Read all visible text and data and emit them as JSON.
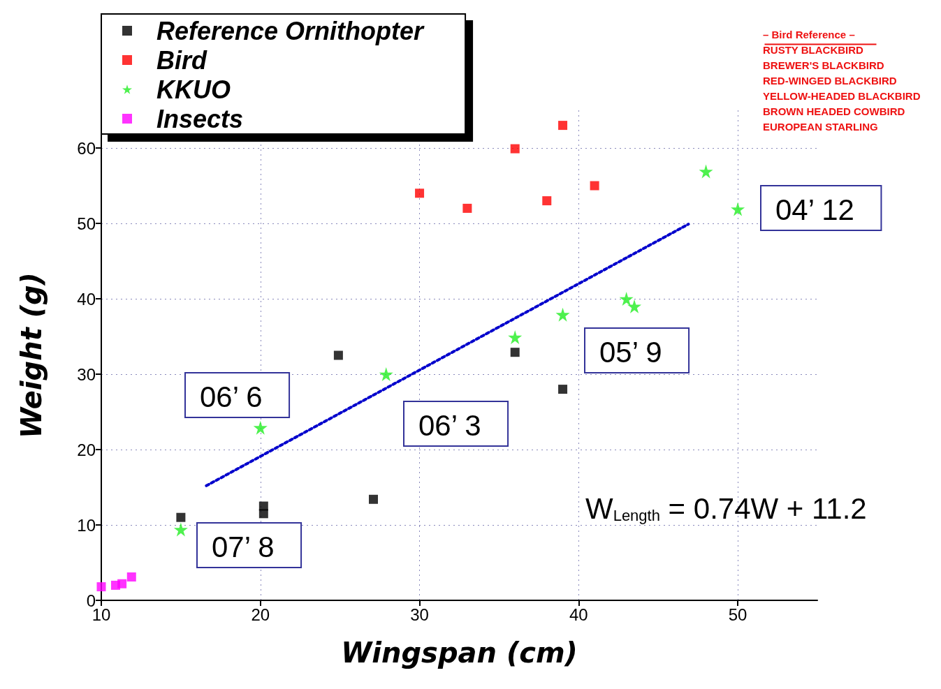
{
  "chart_data": {
    "type": "scatter",
    "xlabel": "Wingspan (cm)",
    "ylabel": "Weight (g)",
    "xlim": [
      10,
      55
    ],
    "xticks": [
      10,
      20,
      30,
      40,
      50
    ],
    "ylim": [
      0,
      65
    ],
    "yticks": [
      0,
      10,
      20,
      30,
      40,
      50,
      60
    ],
    "grid": true,
    "legend": "top left",
    "series": [
      {
        "name": "Reference Ornithopter",
        "color": "#000000",
        "marker": "square",
        "x": [
          15.0,
          20.2,
          20.2,
          24.9,
          27.1,
          36.0,
          39.0
        ],
        "values": [
          11.0,
          12.5,
          11.5,
          32.5,
          13.4,
          32.9,
          28.0
        ]
      },
      {
        "name": "Bird",
        "color": "#ff0000",
        "marker": "square",
        "x": [
          30.0,
          33.0,
          36.0,
          38.0,
          39.0,
          41.0
        ],
        "values": [
          54.0,
          52.0,
          59.9,
          53.0,
          63.0,
          55.0
        ]
      },
      {
        "name": "KKUO",
        "color": "#22ee22",
        "marker": "star",
        "x": [
          15.0,
          20.0,
          27.9,
          36.0,
          39.0,
          43.0,
          43.5,
          48.0,
          50.0
        ],
        "values": [
          9.4,
          22.9,
          30.0,
          34.9,
          37.9,
          40.0,
          39.0,
          56.9,
          51.9
        ]
      },
      {
        "name": "Insects",
        "color": "#ff00ff",
        "marker": "square",
        "x": [
          10.0,
          10.9,
          11.3,
          11.9
        ],
        "values": [
          1.8,
          2.0,
          2.2,
          3.1
        ]
      },
      {
        "type": "line",
        "color": "#0000cc",
        "marker": "none",
        "line_style": "dotted",
        "x": [
          16.6,
          46.9
        ],
        "values": [
          15.2,
          49.9
        ]
      }
    ],
    "annotations": [
      "04’ 12",
      "05’ 9",
      "06’ 3",
      "06’ 6",
      "07’ 8",
      "W$_{Length}$ = 0.74W + 11.2",
      "– Bird Reference –",
      "RUSTY BLACKBIRD",
      "BREWER'S BLACKBIRD",
      "RED-WINGED BLACKBIRD",
      "YELLOW-HEADED BLACKBIRD",
      "BROWN HEADED COWBIRD",
      "EUROPEAN STARLING"
    ]
  }
}
